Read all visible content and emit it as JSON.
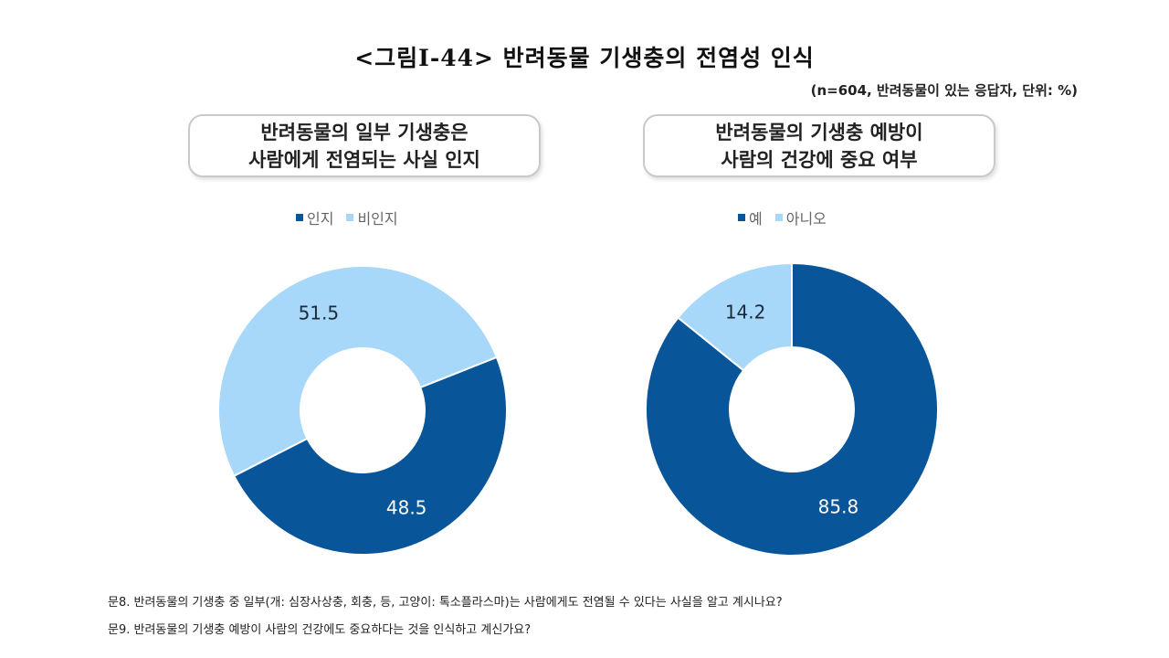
{
  "title": "<그림Ⅰ-44> 반려동물 기생충의 전염성 인식",
  "note": "(n=604, 반려동물이 있는 응답자, 단위: %)",
  "chart_data": [
    {
      "type": "pie",
      "subtype": "donut",
      "title_lines": [
        "반려동물의 일부 기생충은",
        "사람에게 전염되는 사실 인지"
      ],
      "categories": [
        "인지",
        "비인지"
      ],
      "values": [
        48.5,
        51.5
      ],
      "value_labels": [
        "48.5",
        "51.5"
      ],
      "colors": [
        "#08559a",
        "#a7d7f9"
      ],
      "legend_position": "top"
    },
    {
      "type": "pie",
      "subtype": "donut",
      "title_lines": [
        "반려동물의 기생충 예방이",
        "사람의 건강에 중요 여부"
      ],
      "categories": [
        "예",
        "아니오"
      ],
      "values": [
        85.8,
        14.2
      ],
      "value_labels": [
        "85.8",
        "14.2"
      ],
      "colors": [
        "#08559a",
        "#a7d7f9"
      ],
      "legend_position": "top"
    }
  ],
  "footnotes": [
    "문8. 반려동물의 기생충 중 일부(개: 심장사상충, 회충, 등, 고양이: 톡소플라스마)는 사람에게도 전염될 수 있다는 사실을 알고 계시나요?",
    "문9. 반려동물의 기생충 예방이 사람의 건강에도 중요하다는 것을 인식하고 계신가요?"
  ]
}
